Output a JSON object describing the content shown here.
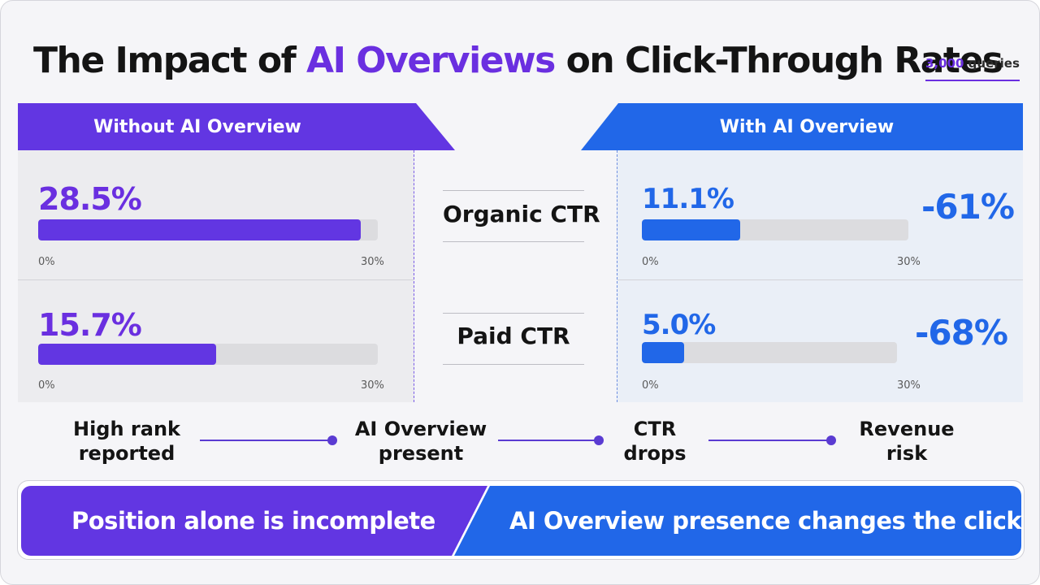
{
  "title": {
    "prefix": "The Impact of ",
    "highlight": "AI Overviews",
    "suffix": " on Click-Through Rates"
  },
  "sample": {
    "count": "3,000",
    "unit": " queries"
  },
  "columns": {
    "left_label": "Without AI Overview",
    "right_label": "With AI Overview"
  },
  "chart_data": {
    "type": "bar",
    "categories": [
      "Organic CTR",
      "Paid CTR"
    ],
    "series": [
      {
        "name": "Without AI Overview",
        "values": [
          28.5,
          15.7
        ],
        "labels": [
          "28.5%",
          "15.7%"
        ]
      },
      {
        "name": "With AI Overview",
        "values": [
          11.1,
          5.0
        ],
        "labels": [
          "11.1%",
          "5.0%"
        ]
      }
    ],
    "change_labels": [
      "-61%",
      "-68%"
    ],
    "xlim": [
      0,
      30
    ],
    "tick_labels": [
      "0%",
      "30%"
    ],
    "colors": {
      "without": "#6236e2",
      "with": "#2167e8"
    }
  },
  "flow": [
    {
      "line1": "High rank",
      "line2": "reported"
    },
    {
      "line1": "AI Overview",
      "line2": "present"
    },
    {
      "line1": "CTR",
      "line2": "drops"
    },
    {
      "line1": "Revenue",
      "line2": "risk"
    }
  ],
  "banner": {
    "left": "Position alone is incomplete",
    "right": "AI Overview presence changes the click story"
  }
}
